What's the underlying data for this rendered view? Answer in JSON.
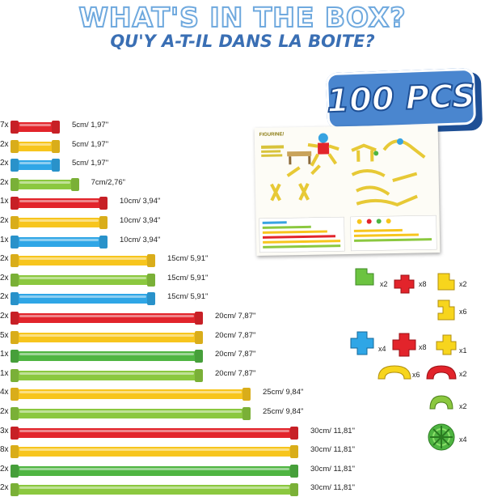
{
  "header": {
    "title_en": "WHAT'S IN THE BOX?",
    "title_fr": "QU'Y A-T-IL DANS LA BOITE?",
    "badge": "100 PCS"
  },
  "colors": {
    "red": "#e2242b",
    "yellow": "#f7c51d",
    "blue": "#2fa6e6",
    "green": "#8bc83f",
    "darkgreen": "#4fb542",
    "badge_blue": "#4a86cf",
    "title_blue": "#3a6fb4"
  },
  "tubes": [
    {
      "qty": "7x",
      "color": "red",
      "size": 5,
      "label": "5cm/ 1,97\""
    },
    {
      "qty": "2x",
      "color": "yellow",
      "size": 5,
      "label": "5cm/ 1,97\""
    },
    {
      "qty": "2x",
      "color": "blue",
      "size": 5,
      "label": "5cm/ 1,97\""
    },
    {
      "qty": "2x",
      "color": "green",
      "size": 7,
      "label": "7cm/2,76\""
    },
    {
      "qty": "1x",
      "color": "red",
      "size": 10,
      "label": "10cm/ 3,94\""
    },
    {
      "qty": "2x",
      "color": "yellow",
      "size": 10,
      "label": "10cm/ 3,94\""
    },
    {
      "qty": "1x",
      "color": "blue",
      "size": 10,
      "label": "10cm/ 3,94\""
    },
    {
      "qty": "2x",
      "color": "yellow",
      "size": 15,
      "label": "15cm/ 5,91\""
    },
    {
      "qty": "2x",
      "color": "green",
      "size": 15,
      "label": "15cm/ 5,91\""
    },
    {
      "qty": "2x",
      "color": "blue",
      "size": 15,
      "label": "15cm/ 5,91\""
    },
    {
      "qty": "2x",
      "color": "red",
      "size": 20,
      "label": "20cm/ 7,87\""
    },
    {
      "qty": "5x",
      "color": "yellow",
      "size": 20,
      "label": "20cm/ 7,87\""
    },
    {
      "qty": "1x",
      "color": "darkgreen",
      "size": 20,
      "label": "20cm/ 7,87\""
    },
    {
      "qty": "1x",
      "color": "green",
      "size": 20,
      "label": "20cm/ 7,87\""
    },
    {
      "qty": "4x",
      "color": "yellow",
      "size": 25,
      "label": "25cm/ 9,84\""
    },
    {
      "qty": "2x",
      "color": "green",
      "size": 25,
      "label": "25cm/ 9,84\""
    },
    {
      "qty": "3x",
      "color": "red",
      "size": 30,
      "label": "30cm/ 11,81\""
    },
    {
      "qty": "8x",
      "color": "yellow",
      "size": 30,
      "label": "30cm/ 11,81\""
    },
    {
      "qty": "2x",
      "color": "darkgreen",
      "size": 30,
      "label": "30cm/ 11,81\""
    },
    {
      "qty": "2x",
      "color": "green",
      "size": 30,
      "label": "30cm/ 11,81\""
    }
  ],
  "booklet": {
    "title": "FIGURINE/"
  },
  "connectors": [
    {
      "name": "green-elbow",
      "color": "green",
      "qty": "x2"
    },
    {
      "name": "red-cross",
      "color": "red",
      "qty": "x8"
    },
    {
      "name": "yellow-elbow",
      "color": "yellow",
      "qty": "x2"
    },
    {
      "name": "yellow-t",
      "color": "yellow",
      "qty": "x6"
    },
    {
      "name": "blue-cross",
      "color": "blue",
      "qty": "x4"
    },
    {
      "name": "red-cross-2",
      "color": "red",
      "qty": "x8"
    },
    {
      "name": "yellow-cross",
      "color": "yellow",
      "qty": "x1"
    },
    {
      "name": "yellow-arch",
      "color": "yellow",
      "qty": "x6"
    },
    {
      "name": "red-arch",
      "color": "red",
      "qty": "x2"
    },
    {
      "name": "green-arch",
      "color": "green",
      "qty": "x2"
    },
    {
      "name": "green-wheel",
      "color": "darkgreen",
      "qty": "x4"
    }
  ]
}
